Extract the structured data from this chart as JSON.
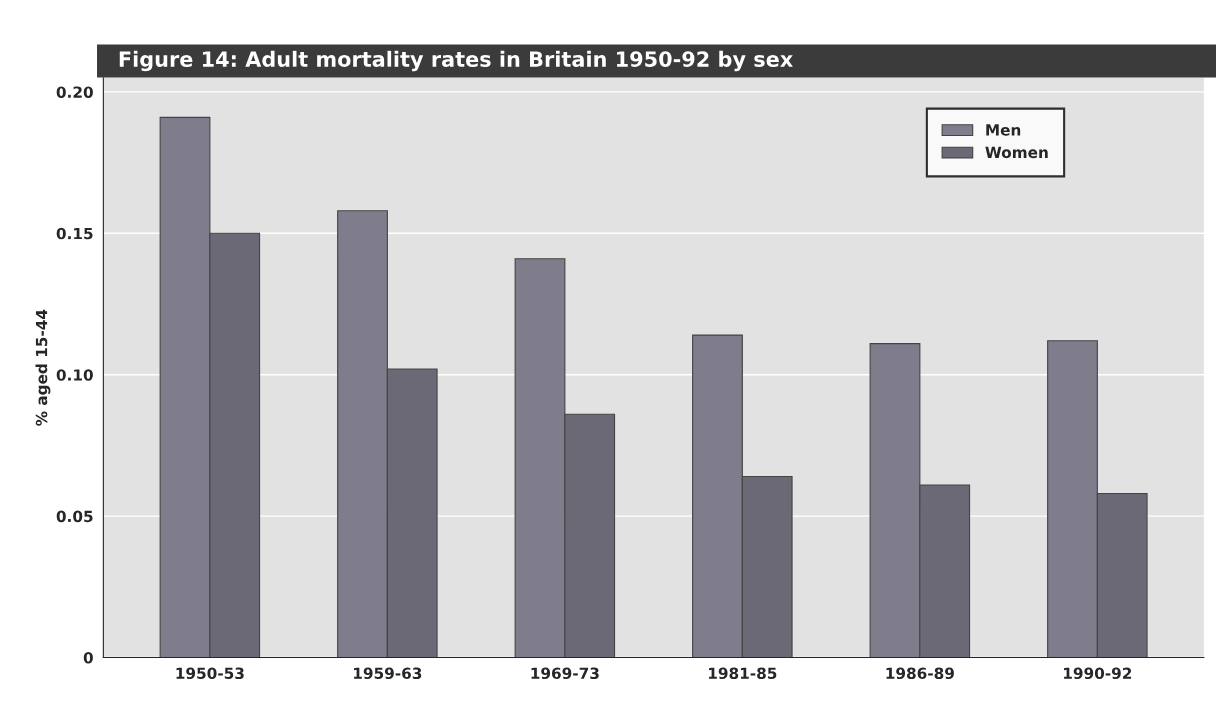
{
  "chart_data": {
    "type": "bar",
    "title": "Figure 14: Adult mortality rates in Britain 1950-92 by sex",
    "ylabel": "% aged 15-44",
    "categories": [
      "1950-53",
      "1959-63",
      "1969-73",
      "1981-85",
      "1986-89",
      "1990-92"
    ],
    "series": [
      {
        "name": "Men",
        "color": "#7f7c8c",
        "values": [
          0.191,
          0.158,
          0.141,
          0.114,
          0.111,
          0.112
        ]
      },
      {
        "name": "Women",
        "color": "#6c6976",
        "values": [
          0.15,
          0.102,
          0.086,
          0.064,
          0.061,
          0.058
        ]
      }
    ],
    "ylim": [
      0,
      0.205
    ],
    "yticks": [
      {
        "value": 0,
        "label": "0"
      },
      {
        "value": 0.05,
        "label": "0.05"
      },
      {
        "value": 0.1,
        "label": "0.10"
      },
      {
        "value": 0.15,
        "label": "0.15"
      },
      {
        "value": 0.2,
        "label": "0.20"
      }
    ],
    "grid": "y",
    "legend": "top right"
  }
}
